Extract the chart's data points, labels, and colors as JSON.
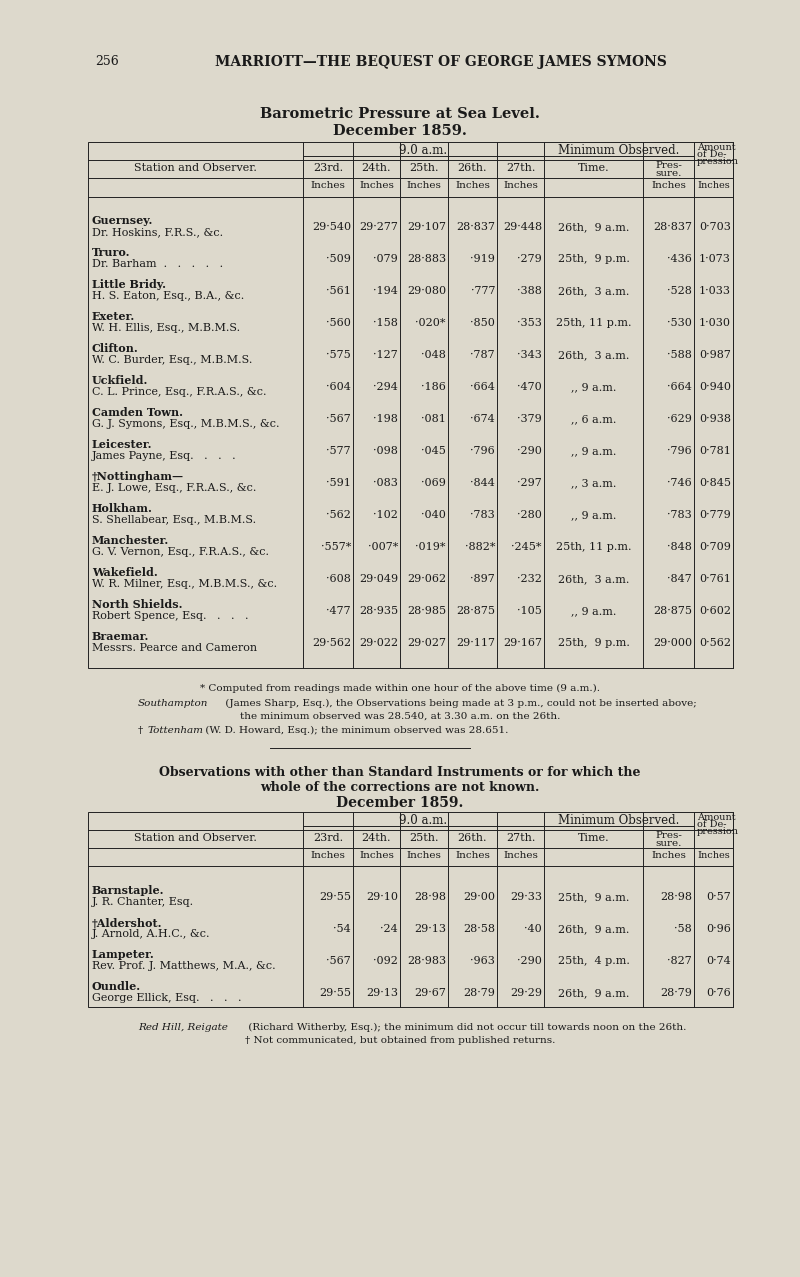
{
  "page_number": "256",
  "page_header": "MARRIOTT—THE BEQUEST OF GEORGE JAMES SYMONS",
  "bg_color": "#ddd9cc",
  "title1": "Barometric Pressure at Sea Level.",
  "title2": "December 1859.",
  "table1_rows": [
    {
      "location": "Guernsey.",
      "observer": "Dr. Hoskins, F.R.S., &c.",
      "d23": "29·540",
      "d24": "29·277",
      "d25": "29·107",
      "d26": "28·837",
      "d27": "29·448",
      "time": "26th,  9 a.m.",
      "pressure": "28·837",
      "depression": "0·703"
    },
    {
      "location": "Truro.",
      "observer": "Dr. Barham  .   .   .   .   .",
      "d23": "·509",
      "d24": "·079",
      "d25": "28·883",
      "d26": "·919",
      "d27": "·279",
      "time": "25th,  9 p.m.",
      "pressure": "·436",
      "depression": "1·073"
    },
    {
      "location": "Little Bridy.",
      "observer": "H. S. Eaton, Esq., B.A., &c.",
      "d23": "·561",
      "d24": "·194",
      "d25": "29·080",
      "d26": "·777",
      "d27": "·388",
      "time": "26th,  3 a.m.",
      "pressure": "·528",
      "depression": "1·033"
    },
    {
      "location": "Exeter.",
      "observer": "W. H. Ellis, Esq., M.B.M.S.",
      "d23": "·560",
      "d24": "·158",
      "d25": "·020*",
      "d26": "·850",
      "d27": "·353",
      "time": "25th, 11 p.m.",
      "pressure": "·530",
      "depression": "1·030"
    },
    {
      "location": "Clifton.",
      "observer": "W. C. Burder, Esq., M.B.M.S.",
      "d23": "·575",
      "d24": "·127",
      "d25": "·048",
      "d26": "·787",
      "d27": "·343",
      "time": "26th,  3 a.m.",
      "pressure": "·588",
      "depression": "0·987"
    },
    {
      "location": "Uckfield.",
      "observer": "C. L. Prince, Esq., F.R.A.S., &c.",
      "d23": "·604",
      "d24": "·294",
      "d25": "·186",
      "d26": "·664",
      "d27": "·470",
      "time": ",, 9 a.m.",
      "pressure": "·664",
      "depression": "0·940"
    },
    {
      "location": "Camden Town.",
      "observer": "G. J. Symons, Esq., M.B.M.S., &c.",
      "d23": "·567",
      "d24": "·198",
      "d25": "·081",
      "d26": "·674",
      "d27": "·379",
      "time": ",, 6 a.m.",
      "pressure": "·629",
      "depression": "0·938"
    },
    {
      "location": "Leicester.",
      "observer": "James Payne, Esq.   .   .   .",
      "d23": "·577",
      "d24": "·098",
      "d25": "·045",
      "d26": "·796",
      "d27": "·290",
      "time": ",, 9 a.m.",
      "pressure": "·796",
      "depression": "0·781"
    },
    {
      "location": "†Nottingham—",
      "observer": "E. J. Lowe, Esq., F.R.A.S., &c.",
      "d23": "·591",
      "d24": "·083",
      "d25": "·069",
      "d26": "·844",
      "d27": "·297",
      "time": ",, 3 a.m.",
      "pressure": "·746",
      "depression": "0·845"
    },
    {
      "location": "Holkham.",
      "observer": "S. Shellabear, Esq., M.B.M.S.",
      "d23": "·562",
      "d24": "·102",
      "d25": "·040",
      "d26": "·783",
      "d27": "·280",
      "time": ",, 9 a.m.",
      "pressure": "·783",
      "depression": "0·779"
    },
    {
      "location": "Manchester.",
      "observer": "G. V. Vernon, Esq., F.R.A.S., &c.",
      "d23": "·557*",
      "d24": "·007*",
      "d25": "·019*",
      "d26": "·882*",
      "d27": "·245*",
      "time": "25th, 11 p.m.",
      "pressure": "·848",
      "depression": "0·709"
    },
    {
      "location": "Wakefield.",
      "observer": "W. R. Milner, Esq., M.B.M.S., &c.",
      "d23": "·608",
      "d24": "29·049",
      "d25": "29·062",
      "d26": "·897",
      "d27": "·232",
      "time": "26th,  3 a.m.",
      "pressure": "·847",
      "depression": "0·761"
    },
    {
      "location": "North Shields.",
      "observer": "Robert Spence, Esq.   .   .   .",
      "d23": "·477",
      "d24": "28·935",
      "d25": "28·985",
      "d26": "28·875",
      "d27": "·105",
      "time": ",, 9 a.m.",
      "pressure": "28·875",
      "depression": "0·602"
    },
    {
      "location": "Braemar.",
      "observer": "Messrs. Pearce and Cameron",
      "d23": "29·562",
      "d24": "29·022",
      "d25": "29·027",
      "d26": "29·117",
      "d27": "29·167",
      "time": "25th,  9 p.m.",
      "pressure": "29·000",
      "depression": "0·562"
    }
  ],
  "footnote1": "* Computed from readings made within one hour of the above time (9 a.m.).",
  "footnote2a": "Southampton",
  "footnote2b": " (James Sharp, Esq.), the Observations being made at 3 p.m., could not be inserted above;",
  "footnote2c": "the minimum observed was 28.540, at 3.30 a.m. on the 26th.",
  "footnote3a": "† ",
  "footnote3b": "Tottenham",
  "footnote3c": " (W. D. Howard, Esq.); the minimum observed was 28.651.",
  "section2_line1": "Observations with other than Standard Instruments or for which the",
  "section2_line2": "whole of the corrections are not known.",
  "section2_line3": "December 1859.",
  "table2_rows": [
    {
      "location": "Barnstaple.",
      "observer": "J. R. Chanter, Esq.",
      "d23": "29·55",
      "d24": "29·10",
      "d25": "28·98",
      "d26": "29·00",
      "d27": "29·33",
      "time": "25th,  9 a.m.",
      "pressure": "28·98",
      "depression": "0·57"
    },
    {
      "location": "†Aldershot.",
      "observer": "J. Arnold, A.H.C., &c.",
      "d23": "·54",
      "d24": "·24",
      "d25": "29·13",
      "d26": "28·58",
      "d27": "·40",
      "time": "26th,  9 a.m.",
      "pressure": "·58",
      "depression": "0·96"
    },
    {
      "location": "Lampeter.",
      "observer": "Rev. Prof. J. Matthews, M.A., &c.",
      "d23": "·567",
      "d24": "·092",
      "d25": "28·983",
      "d26": "·963",
      "d27": "·290",
      "time": "25th,  4 p.m.",
      "pressure": "·827",
      "depression": "0·74"
    },
    {
      "location": "Oundle.",
      "observer": "George Ellick, Esq.   .   .   .",
      "d23": "29·55",
      "d24": "29·13",
      "d25": "29·67",
      "d26": "28·79",
      "d27": "29·29",
      "time": "26th,  9 a.m.",
      "pressure": "28·79",
      "depression": "0·76"
    }
  ],
  "footnote4a": "Red Hill, Reigate",
  "footnote4b": " (Richard Witherby, Esq.); the minimum did not occur till towards noon on the 26th.",
  "footnote5": "† Not communicated, but obtained from published returns."
}
